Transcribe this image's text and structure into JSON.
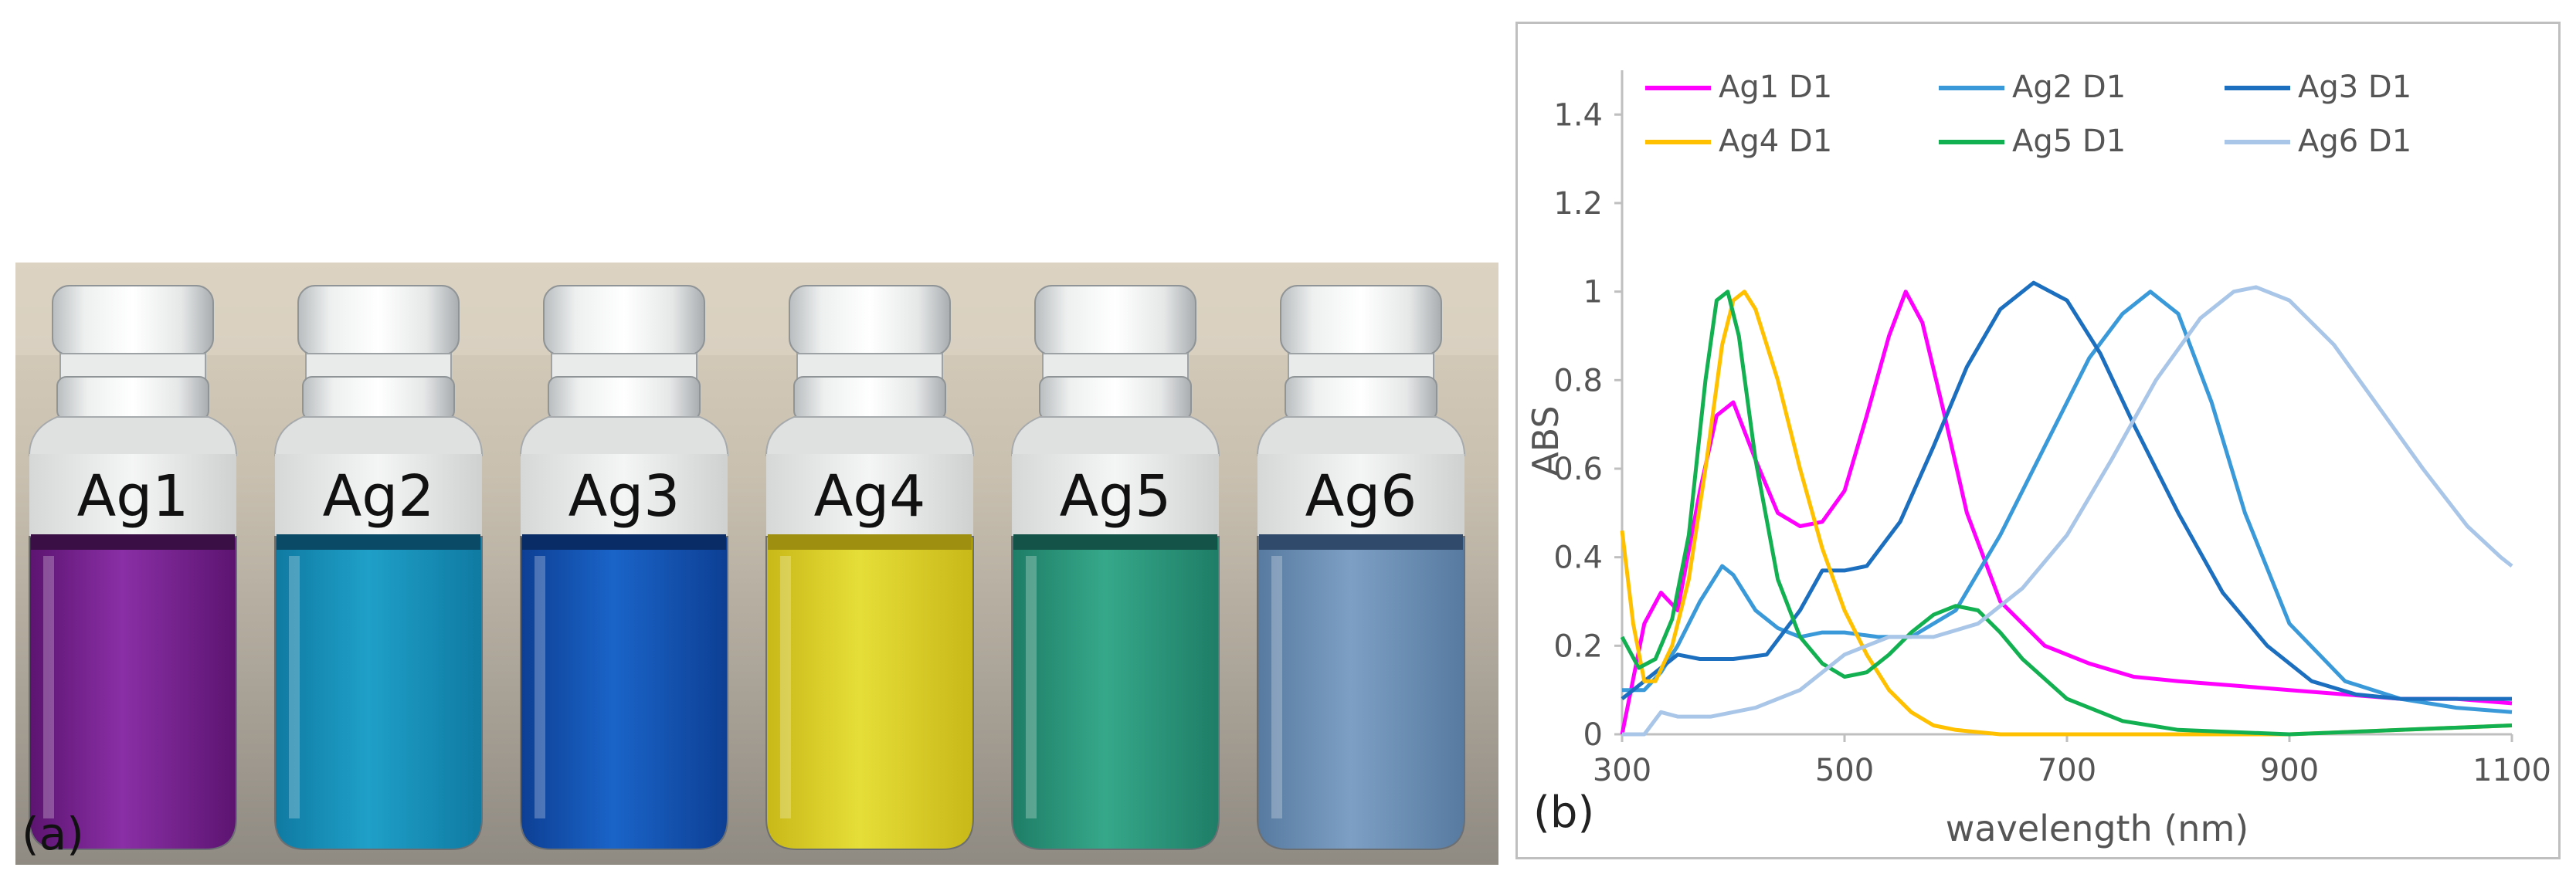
{
  "panel_a": {
    "label": "(a)",
    "vials": [
      {
        "label": "Ag1",
        "liquid": "#8a2fa6",
        "liquid_dark": "#5c1470",
        "meniscus": "#3a0f46"
      },
      {
        "label": "Ag2",
        "liquid": "#1fa0c8",
        "liquid_dark": "#0f7aa2",
        "meniscus": "#0b4a66"
      },
      {
        "label": "Ag3",
        "liquid": "#1a64c8",
        "liquid_dark": "#0d3f94",
        "meniscus": "#092c66"
      },
      {
        "label": "Ag4",
        "liquid": "#e6de38",
        "liquid_dark": "#c8b818",
        "meniscus": "#9f8f10"
      },
      {
        "label": "Ag5",
        "liquid": "#36a88a",
        "liquid_dark": "#1e7d66",
        "meniscus": "#145448"
      },
      {
        "label": "Ag6",
        "liquid": "#7d9fc4",
        "liquid_dark": "#577aa0",
        "meniscus": "#2f4a6a"
      }
    ]
  },
  "panel_b": {
    "label": "(b)",
    "chart_data": {
      "type": "line",
      "xlabel": "wavelength (nm)",
      "ylabel": "ABS",
      "xlim": [
        300,
        1100
      ],
      "ylim": [
        0,
        1.5
      ],
      "xticks": [
        "300",
        "500",
        "700",
        "900",
        "1100"
      ],
      "yticks": [
        "0",
        "0.2",
        "0.4",
        "0.6",
        "0.8",
        "1",
        "1.2",
        "1.4"
      ],
      "legend_position": "top",
      "grid": false,
      "series": [
        {
          "name": "Ag1 D1",
          "color": "#ff00ff",
          "x": [
            300,
            320,
            335,
            350,
            370,
            385,
            400,
            420,
            440,
            460,
            480,
            500,
            520,
            540,
            555,
            570,
            590,
            610,
            640,
            680,
            720,
            760,
            800,
            850,
            900,
            950,
            1000,
            1050,
            1100
          ],
          "y": [
            0,
            0.25,
            0.32,
            0.28,
            0.55,
            0.72,
            0.75,
            0.62,
            0.5,
            0.47,
            0.48,
            0.55,
            0.72,
            0.9,
            1.0,
            0.93,
            0.72,
            0.5,
            0.3,
            0.2,
            0.16,
            0.13,
            0.12,
            0.11,
            0.1,
            0.09,
            0.08,
            0.08,
            0.07
          ]
        },
        {
          "name": "Ag2 D1",
          "color": "#3a9ad9",
          "x": [
            300,
            320,
            335,
            350,
            370,
            390,
            400,
            420,
            440,
            460,
            480,
            500,
            530,
            560,
            600,
            640,
            680,
            720,
            750,
            775,
            800,
            830,
            860,
            900,
            950,
            1000,
            1050,
            1100
          ],
          "y": [
            0.1,
            0.1,
            0.14,
            0.2,
            0.3,
            0.38,
            0.36,
            0.28,
            0.24,
            0.22,
            0.23,
            0.23,
            0.22,
            0.22,
            0.28,
            0.45,
            0.65,
            0.85,
            0.95,
            1.0,
            0.95,
            0.75,
            0.5,
            0.25,
            0.12,
            0.08,
            0.06,
            0.05
          ]
        },
        {
          "name": "Ag3 D1",
          "color": "#1c6fbf",
          "x": [
            300,
            320,
            335,
            350,
            370,
            400,
            430,
            460,
            480,
            500,
            520,
            550,
            580,
            610,
            640,
            670,
            700,
            730,
            760,
            800,
            840,
            880,
            920,
            960,
            1000,
            1050,
            1100
          ],
          "y": [
            0.08,
            0.12,
            0.15,
            0.18,
            0.17,
            0.17,
            0.18,
            0.28,
            0.37,
            0.37,
            0.38,
            0.48,
            0.65,
            0.83,
            0.96,
            1.02,
            0.98,
            0.86,
            0.7,
            0.5,
            0.32,
            0.2,
            0.12,
            0.09,
            0.08,
            0.08,
            0.08
          ]
        },
        {
          "name": "Ag4 D1",
          "color": "#ffc000",
          "x": [
            300,
            310,
            320,
            330,
            345,
            360,
            375,
            390,
            400,
            410,
            420,
            440,
            460,
            480,
            500,
            520,
            540,
            560,
            580,
            600,
            640,
            700,
            800,
            900,
            1000,
            1100
          ],
          "y": [
            0.46,
            0.25,
            0.12,
            0.12,
            0.2,
            0.35,
            0.6,
            0.88,
            0.98,
            1.0,
            0.96,
            0.8,
            0.6,
            0.42,
            0.28,
            0.18,
            0.1,
            0.05,
            0.02,
            0.01,
            0,
            0,
            0,
            0,
            0.01,
            0.02
          ]
        },
        {
          "name": "Ag5 D1",
          "color": "#12b050",
          "x": [
            300,
            315,
            330,
            345,
            360,
            375,
            385,
            395,
            405,
            420,
            440,
            460,
            480,
            500,
            520,
            540,
            560,
            580,
            600,
            620,
            640,
            660,
            700,
            750,
            800,
            900,
            1000,
            1100
          ],
          "y": [
            0.22,
            0.15,
            0.17,
            0.26,
            0.45,
            0.8,
            0.98,
            1.0,
            0.9,
            0.62,
            0.35,
            0.22,
            0.16,
            0.13,
            0.14,
            0.18,
            0.23,
            0.27,
            0.29,
            0.28,
            0.23,
            0.17,
            0.08,
            0.03,
            0.01,
            0,
            0.01,
            0.02
          ]
        },
        {
          "name": "Ag6 D1",
          "color": "#a9c6e8",
          "x": [
            300,
            320,
            335,
            350,
            380,
            420,
            460,
            500,
            540,
            580,
            620,
            660,
            700,
            740,
            780,
            820,
            850,
            870,
            900,
            940,
            980,
            1020,
            1060,
            1090,
            1100
          ],
          "y": [
            0,
            0,
            0.05,
            0.04,
            0.04,
            0.06,
            0.1,
            0.18,
            0.22,
            0.22,
            0.25,
            0.33,
            0.45,
            0.62,
            0.8,
            0.94,
            1.0,
            1.01,
            0.98,
            0.88,
            0.74,
            0.6,
            0.47,
            0.4,
            0.38
          ]
        }
      ]
    }
  }
}
